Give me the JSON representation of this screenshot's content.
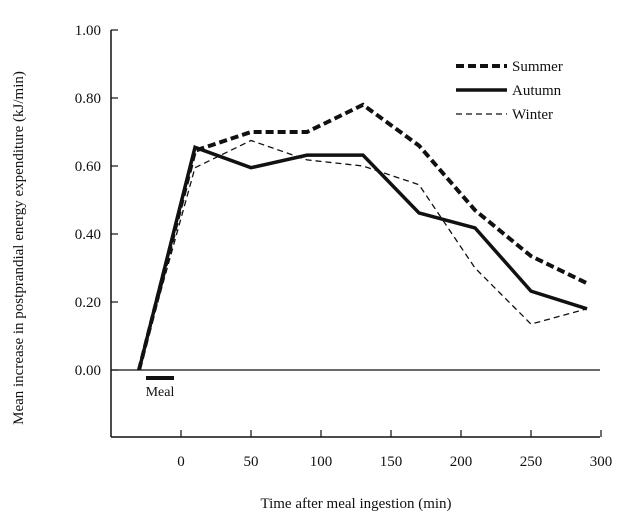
{
  "chart_data": {
    "type": "line",
    "title": "",
    "xlabel": "Time after meal ingestion (min)",
    "ylabel": "Mean increase in postprandial energy expenditure (kJ/min)",
    "xlim": [
      -45,
      300
    ],
    "ylim": [
      -0.2,
      1.0
    ],
    "x_ticks": [
      0,
      50,
      100,
      150,
      200,
      250,
      300
    ],
    "y_ticks": [
      0.0,
      0.2,
      0.4,
      0.6,
      0.8,
      1.0
    ],
    "x_tick_labels": [
      "0",
      "50",
      "100",
      "150",
      "200",
      "250",
      "300"
    ],
    "y_tick_labels": [
      "0.00",
      "0.20",
      "0.40",
      "0.60",
      "0.80",
      "1.00"
    ],
    "legend_position": "top-right",
    "series": [
      {
        "name": "Summer",
        "style": "thick-dashed",
        "color": "#111111",
        "x": [
          -30,
          10,
          50,
          90,
          130,
          170,
          210,
          250,
          290
        ],
        "y": [
          0.0,
          0.645,
          0.7,
          0.7,
          0.78,
          0.66,
          0.47,
          0.335,
          0.255
        ]
      },
      {
        "name": "Autumn",
        "style": "thick-solid",
        "color": "#111111",
        "x": [
          -30,
          10,
          50,
          90,
          130,
          170,
          210,
          250,
          290
        ],
        "y": [
          0.0,
          0.655,
          0.595,
          0.632,
          0.632,
          0.462,
          0.418,
          0.232,
          0.18
        ]
      },
      {
        "name": "Winter",
        "style": "thin-dashed",
        "color": "#111111",
        "x": [
          -30,
          10,
          50,
          90,
          130,
          170,
          210,
          250,
          290
        ],
        "y": [
          0.0,
          0.595,
          0.675,
          0.618,
          0.6,
          0.545,
          0.3,
          0.135,
          0.18
        ]
      }
    ],
    "annotations": [
      {
        "text": "Meal",
        "x_start": -25,
        "x_end": -5
      }
    ]
  }
}
